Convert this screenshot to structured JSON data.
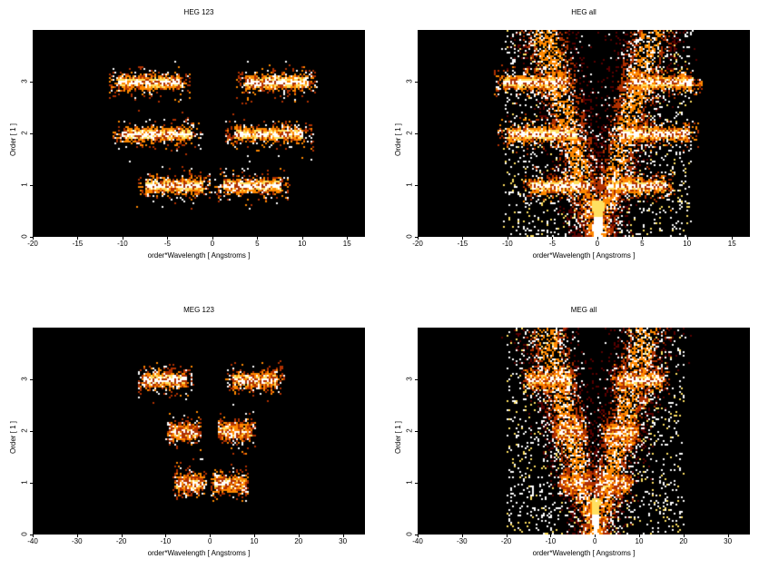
{
  "chart_data": [
    {
      "type": "heatmap",
      "title": "HEG 123",
      "xlabel": "order*Wavelength [ Angstroms ]",
      "ylabel": "Order [ 1 ]",
      "xlim": [
        -20,
        17
      ],
      "ylim": [
        0,
        4
      ],
      "xticks": [
        "-20",
        "-15",
        "-10",
        "-5",
        "0",
        "5",
        "10",
        "15"
      ],
      "xtick_values": [
        -20,
        -15,
        -10,
        -5,
        0,
        5,
        10,
        15
      ],
      "yticks": [
        "0",
        "1",
        "2",
        "3"
      ],
      "ytick_values": [
        0,
        1,
        2,
        3
      ],
      "colormap": [
        "#000000",
        "#5a0000",
        "#b03000",
        "#ff8800",
        "#ffe060",
        "#ffffff"
      ],
      "bands": [
        {
          "order": 1,
          "xmin": -7.5,
          "xmax": -1.2,
          "side": "neg"
        },
        {
          "order": 1,
          "xmin": 1.2,
          "xmax": 7.5,
          "side": "pos"
        },
        {
          "order": 2,
          "xmin": -10,
          "xmax": -2.4,
          "side": "neg"
        },
        {
          "order": 2,
          "xmin": 2.4,
          "xmax": 10,
          "side": "pos"
        },
        {
          "order": 3,
          "xmin": -10.5,
          "xmax": -3.6,
          "side": "neg"
        },
        {
          "order": 3,
          "xmin": 3.6,
          "xmax": 10.5,
          "side": "pos"
        }
      ],
      "background": "none"
    },
    {
      "type": "heatmap",
      "title": "HEG all",
      "xlabel": "order*Wavelength [ Angstroms ]",
      "ylabel": "Order [ 1 ]",
      "xlim": [
        -20,
        17
      ],
      "ylim": [
        0,
        4
      ],
      "xticks": [
        "-20",
        "-15",
        "-10",
        "-5",
        "0",
        "5",
        "10",
        "15"
      ],
      "xtick_values": [
        -20,
        -15,
        -10,
        -5,
        0,
        5,
        10,
        15
      ],
      "yticks": [
        "0",
        "1",
        "2",
        "3"
      ],
      "ytick_values": [
        0,
        1,
        2,
        3
      ],
      "colormap": [
        "#000000",
        "#5a0000",
        "#b03000",
        "#ff8800",
        "#ffe060",
        "#ffffff"
      ],
      "bands": [
        {
          "order": 1,
          "xmin": -7.5,
          "xmax": -1.2,
          "side": "neg"
        },
        {
          "order": 1,
          "xmin": 1.2,
          "xmax": 7.5,
          "side": "pos"
        },
        {
          "order": 2,
          "xmin": -10,
          "xmax": -2.4,
          "side": "neg"
        },
        {
          "order": 2,
          "xmin": 2.4,
          "xmax": 10,
          "side": "pos"
        },
        {
          "order": 3,
          "xmin": -10.5,
          "xmax": -3.6,
          "side": "neg"
        },
        {
          "order": 3,
          "xmin": 3.6,
          "xmax": 10.5,
          "side": "pos"
        }
      ],
      "background": "v-shape",
      "vshape_xmax": 10.5
    },
    {
      "type": "heatmap",
      "title": "MEG 123",
      "xlabel": "order*Wavelength [ Angstroms ]",
      "ylabel": "Order [ 1 ]",
      "xlim": [
        -40,
        35
      ],
      "ylim": [
        0,
        4
      ],
      "xticks": [
        "-40",
        "-30",
        "-20",
        "-10",
        "0",
        "10",
        "20",
        "30"
      ],
      "xtick_values": [
        -40,
        -30,
        -20,
        -10,
        0,
        10,
        20,
        30
      ],
      "yticks": [
        "0",
        "1",
        "2",
        "3"
      ],
      "ytick_values": [
        0,
        1,
        2,
        3
      ],
      "colormap": [
        "#000000",
        "#5a0000",
        "#b03000",
        "#ff8800",
        "#ffe060",
        "#ffffff"
      ],
      "bands": [
        {
          "order": 1,
          "xmin": -7.5,
          "xmax": -2,
          "side": "neg"
        },
        {
          "order": 1,
          "xmin": 1,
          "xmax": 7.5,
          "side": "pos"
        },
        {
          "order": 2,
          "xmin": -9,
          "xmax": -3,
          "side": "neg"
        },
        {
          "order": 2,
          "xmin": 2.5,
          "xmax": 9,
          "side": "pos"
        },
        {
          "order": 3,
          "xmin": -15,
          "xmax": -5.5,
          "side": "neg"
        },
        {
          "order": 3,
          "xmin": 5,
          "xmax": 15,
          "side": "pos"
        }
      ],
      "background": "none"
    },
    {
      "type": "heatmap",
      "title": "MEG all",
      "xlabel": "order*Wavelength [ Angstroms ]",
      "ylabel": "Order [ 1 ]",
      "xlim": [
        -40,
        35
      ],
      "ylim": [
        0,
        4
      ],
      "xticks": [
        "-40",
        "-30",
        "-20",
        "-10",
        "0",
        "10",
        "20",
        "30"
      ],
      "xtick_values": [
        -40,
        -30,
        -20,
        -10,
        0,
        10,
        20,
        30
      ],
      "yticks": [
        "0",
        "1",
        "2",
        "3"
      ],
      "ytick_values": [
        0,
        1,
        2,
        3
      ],
      "colormap": [
        "#000000",
        "#5a0000",
        "#b03000",
        "#ff8800",
        "#ffe060",
        "#ffffff"
      ],
      "bands": [
        {
          "order": 1,
          "xmin": -7.5,
          "xmax": -2,
          "side": "neg"
        },
        {
          "order": 1,
          "xmin": 1,
          "xmax": 7.5,
          "side": "pos"
        },
        {
          "order": 2,
          "xmin": -9,
          "xmax": -3,
          "side": "neg"
        },
        {
          "order": 2,
          "xmin": 2.5,
          "xmax": 9,
          "side": "pos"
        },
        {
          "order": 3,
          "xmin": -15,
          "xmax": -5.5,
          "side": "neg"
        },
        {
          "order": 3,
          "xmin": 5,
          "xmax": 15,
          "side": "pos"
        }
      ],
      "background": "v-shape",
      "vshape_xmax": 20
    }
  ]
}
